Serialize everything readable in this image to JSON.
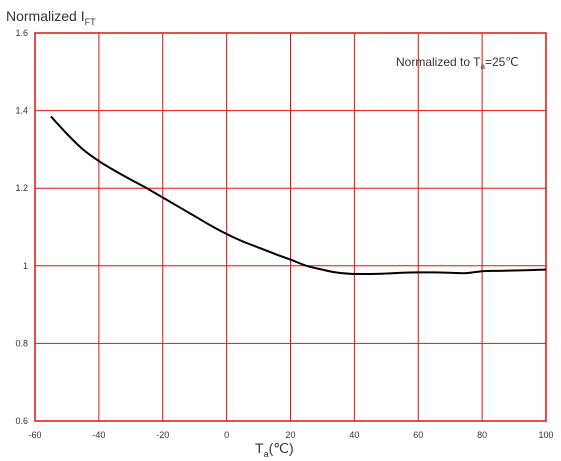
{
  "chart_data": {
    "type": "line",
    "ylabel": {
      "main": "Normalized I",
      "sub": "FT"
    },
    "xlabel": {
      "main": "T",
      "sub": "a",
      "unit": "(℃)"
    },
    "annotation": {
      "before": "Normalized to T",
      "sub": "a",
      "after": "=25℃"
    },
    "xlim": [
      -60,
      100
    ],
    "ylim": [
      0.6,
      1.6
    ],
    "x_ticks": [
      -60,
      -40,
      -20,
      0,
      20,
      40,
      60,
      80,
      100
    ],
    "y_ticks": [
      0.6,
      0.8,
      1,
      1.2,
      1.4,
      1.6
    ],
    "y_tick_labels": [
      "0.6",
      "0.8",
      "1",
      "1.2",
      "1.4",
      "1.6"
    ],
    "grid": true,
    "grid_color": "#e01010",
    "line_color": "#000000",
    "series": [
      {
        "x": [
          -55,
          -50,
          -45,
          -40,
          -35,
          -30,
          -25,
          -20,
          -15,
          -10,
          -5,
          0,
          5,
          10,
          15,
          20,
          25,
          30,
          35,
          40,
          45,
          50,
          55,
          60,
          65,
          70,
          75,
          80,
          85,
          90,
          95,
          100
        ],
        "y": [
          1.385,
          1.34,
          1.3,
          1.27,
          1.245,
          1.222,
          1.2,
          1.176,
          1.152,
          1.128,
          1.104,
          1.082,
          1.063,
          1.047,
          1.031,
          1.016,
          1.0,
          0.99,
          0.982,
          0.979,
          0.979,
          0.98,
          0.982,
          0.983,
          0.983,
          0.982,
          0.981,
          0.986,
          0.987,
          0.988,
          0.989,
          0.99
        ]
      }
    ]
  }
}
